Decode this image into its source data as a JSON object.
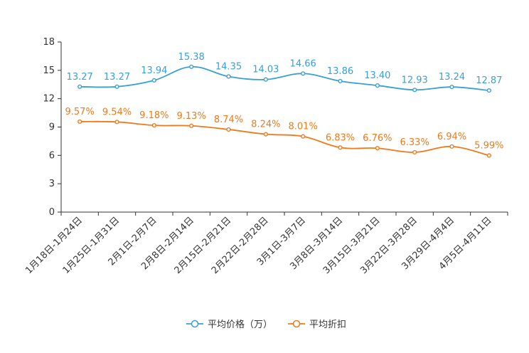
{
  "chart_data": {
    "type": "line",
    "title": "",
    "xlabel": "",
    "ylabel": "",
    "ylim": [
      0,
      18
    ],
    "yticks": [
      0,
      3,
      6,
      9,
      12,
      15,
      18
    ],
    "grid": false,
    "legend_position": "bottom",
    "categories": [
      "1月18日-1月24日",
      "1月25日-1月31日",
      "2月1日-2月7日",
      "2月8日-2月14日",
      "2月15日-2月21日",
      "2月22日-2月28日",
      "3月1日-3月7日",
      "3月8日-3月14日",
      "3月15日-3月21日",
      "3月22日-3月28日",
      "3月29日-4月4日",
      "4月5日-4月11日"
    ],
    "series": [
      {
        "name": "平均价格（万）",
        "color": "#3a9fd4",
        "values": [
          13.27,
          13.27,
          13.94,
          15.38,
          14.35,
          14.03,
          14.66,
          13.86,
          13.4,
          12.93,
          13.24,
          12.87
        ],
        "labels": [
          "13.27",
          "13.27",
          "13.94",
          "15.38",
          "14.35",
          "14.03",
          "14.66",
          "13.86",
          "13.40",
          "12.93",
          "13.24",
          "12.87"
        ]
      },
      {
        "name": "平均折扣",
        "color": "#f07a1b",
        "values": [
          9.57,
          9.54,
          9.18,
          9.13,
          8.74,
          8.24,
          8.01,
          6.83,
          6.76,
          6.33,
          6.94,
          5.99
        ],
        "labels": [
          "9.57%",
          "9.54%",
          "9.18%",
          "9.13%",
          "8.74%",
          "8.24%",
          "8.01%",
          "6.83%",
          "6.76%",
          "6.33%",
          "6.94%",
          "5.99%"
        ]
      }
    ]
  }
}
